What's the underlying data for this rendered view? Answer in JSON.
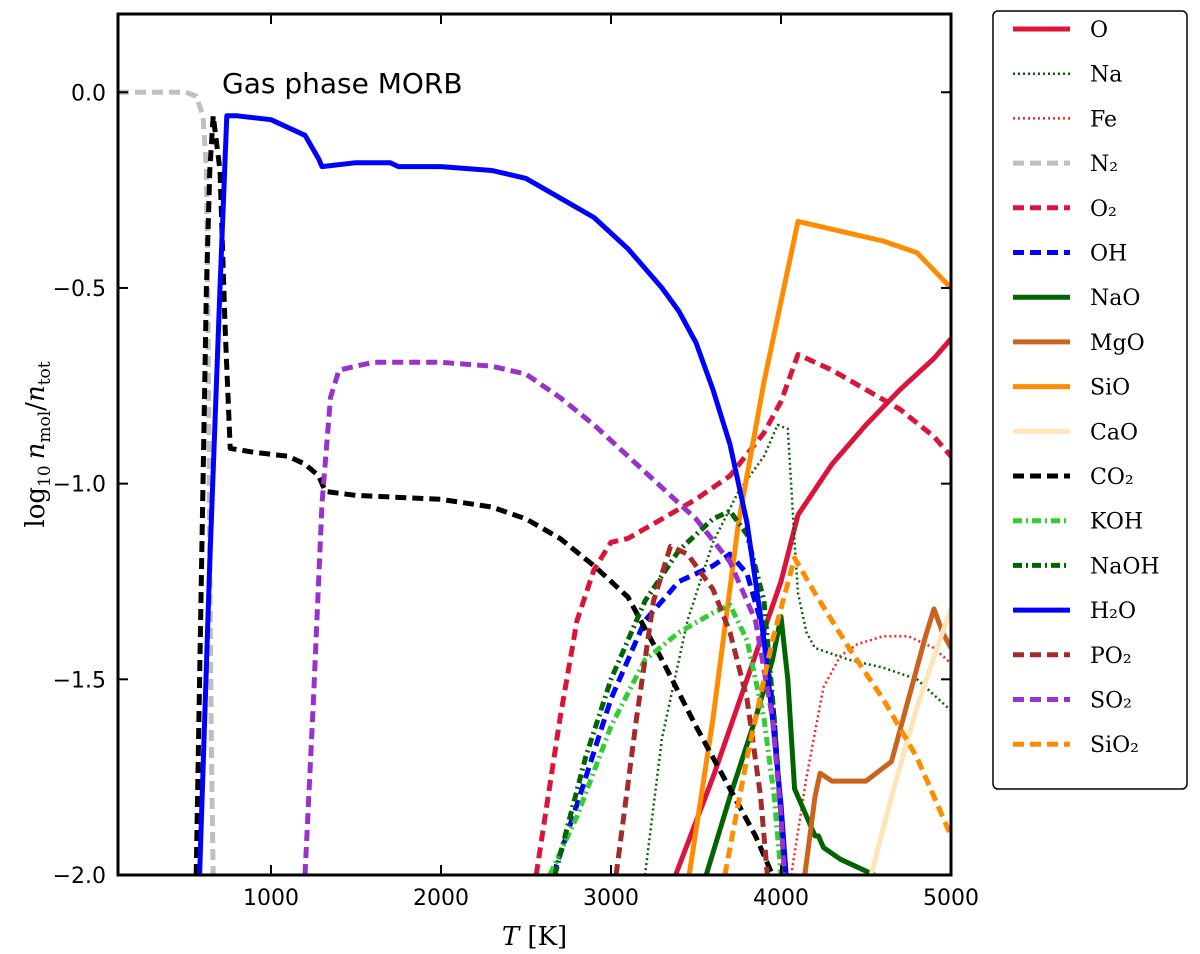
{
  "chart_data": {
    "type": "line",
    "title": "",
    "annotation": "Gas phase MORB",
    "xlabel": "T [K]",
    "ylabel": "log10 n_mol/n_tot",
    "xlim": [
      100,
      5000
    ],
    "ylim": [
      -2.0,
      0.2
    ],
    "xticks": [
      1000,
      2000,
      3000,
      4000,
      5000
    ],
    "xtick_labels": [
      "1000",
      "2000",
      "3000",
      "4000",
      "5000"
    ],
    "yticks": [
      0.0,
      -0.5,
      -1.0,
      -1.5,
      -2.0
    ],
    "ytick_labels": [
      "0.0",
      "−0.5",
      "−1.0",
      "−1.5",
      "−2.0"
    ],
    "grid": false,
    "legend_position": "outside-right",
    "series": [
      {
        "name": "O",
        "color": "#dc143c",
        "style": "solid",
        "points": [
          [
            3380,
            -2.0
          ],
          [
            3600,
            -1.75
          ],
          [
            3800,
            -1.5
          ],
          [
            4000,
            -1.25
          ],
          [
            4100,
            -1.08
          ],
          [
            4300,
            -0.95
          ],
          [
            4500,
            -0.85
          ],
          [
            4700,
            -0.76
          ],
          [
            4900,
            -0.68
          ],
          [
            5000,
            -0.63
          ]
        ]
      },
      {
        "name": "Na",
        "color": "#006400",
        "style": "dotted",
        "points": [
          [
            3200,
            -2.0
          ],
          [
            3300,
            -1.65
          ],
          [
            3450,
            -1.35
          ],
          [
            3600,
            -1.15
          ],
          [
            3750,
            -1.02
          ],
          [
            3900,
            -0.93
          ],
          [
            3980,
            -0.85
          ],
          [
            4040,
            -0.86
          ],
          [
            4080,
            -1.15
          ],
          [
            4100,
            -1.28
          ],
          [
            4150,
            -1.38
          ],
          [
            4200,
            -1.42
          ],
          [
            4400,
            -1.45
          ],
          [
            4600,
            -1.47
          ],
          [
            4800,
            -1.5
          ],
          [
            5000,
            -1.58
          ]
        ]
      },
      {
        "name": "Fe",
        "color": "#ff2020",
        "style": "dotted",
        "points": [
          [
            4060,
            -2.0
          ],
          [
            4150,
            -1.75
          ],
          [
            4250,
            -1.52
          ],
          [
            4350,
            -1.44
          ],
          [
            4450,
            -1.41
          ],
          [
            4600,
            -1.39
          ],
          [
            4750,
            -1.39
          ],
          [
            4900,
            -1.42
          ],
          [
            5000,
            -1.46
          ]
        ]
      },
      {
        "name": "N₂",
        "color": "#bfbfbf",
        "style": "dashed",
        "points": [
          [
            100,
            0.0
          ],
          [
            500,
            0.0
          ],
          [
            560,
            -0.01
          ],
          [
            600,
            -0.06
          ],
          [
            620,
            -0.2
          ],
          [
            630,
            -0.6
          ],
          [
            640,
            -1.2
          ],
          [
            650,
            -1.7
          ],
          [
            660,
            -2.0
          ]
        ]
      },
      {
        "name": "O₂",
        "color": "#dc143c",
        "style": "dashed",
        "points": [
          [
            2560,
            -2.0
          ],
          [
            2700,
            -1.6
          ],
          [
            2800,
            -1.35
          ],
          [
            2900,
            -1.22
          ],
          [
            3000,
            -1.15
          ],
          [
            3100,
            -1.14
          ],
          [
            3300,
            -1.09
          ],
          [
            3500,
            -1.04
          ],
          [
            3700,
            -0.98
          ],
          [
            3900,
            -0.87
          ],
          [
            4000,
            -0.79
          ],
          [
            4100,
            -0.67
          ],
          [
            4300,
            -0.71
          ],
          [
            4500,
            -0.76
          ],
          [
            4700,
            -0.81
          ],
          [
            4900,
            -0.88
          ],
          [
            5000,
            -0.93
          ]
        ]
      },
      {
        "name": "OH",
        "color": "#0000ff",
        "style": "dashed",
        "points": [
          [
            2660,
            -2.0
          ],
          [
            2800,
            -1.82
          ],
          [
            3000,
            -1.55
          ],
          [
            3200,
            -1.35
          ],
          [
            3400,
            -1.25
          ],
          [
            3600,
            -1.21
          ],
          [
            3700,
            -1.18
          ],
          [
            3800,
            -1.23
          ],
          [
            3900,
            -1.38
          ],
          [
            3960,
            -1.6
          ],
          [
            4000,
            -1.85
          ],
          [
            4030,
            -2.0
          ]
        ]
      },
      {
        "name": "NaO",
        "color": "#006400",
        "style": "solid",
        "points": [
          [
            3560,
            -2.0
          ],
          [
            3700,
            -1.8
          ],
          [
            3850,
            -1.6
          ],
          [
            3950,
            -1.45
          ],
          [
            4000,
            -1.34
          ],
          [
            4040,
            -1.5
          ],
          [
            4080,
            -1.78
          ],
          [
            4150,
            -1.85
          ],
          [
            4200,
            -1.9
          ],
          [
            4220,
            -1.9
          ],
          [
            4250,
            -1.93
          ],
          [
            4350,
            -1.96
          ],
          [
            4450,
            -1.98
          ],
          [
            4550,
            -2.0
          ]
        ]
      },
      {
        "name": "MgO",
        "color": "#c8641e",
        "style": "solid",
        "points": [
          [
            4140,
            -2.0
          ],
          [
            4170,
            -1.9
          ],
          [
            4200,
            -1.8
          ],
          [
            4230,
            -1.74
          ],
          [
            4300,
            -1.76
          ],
          [
            4500,
            -1.76
          ],
          [
            4650,
            -1.71
          ],
          [
            4750,
            -1.55
          ],
          [
            4850,
            -1.39
          ],
          [
            4900,
            -1.32
          ],
          [
            4950,
            -1.38
          ],
          [
            5000,
            -1.42
          ]
        ]
      },
      {
        "name": "SiO",
        "color": "#ff8c00",
        "style": "solid",
        "points": [
          [
            3460,
            -2.0
          ],
          [
            3600,
            -1.6
          ],
          [
            3750,
            -1.1
          ],
          [
            3900,
            -0.74
          ],
          [
            4100,
            -0.33
          ],
          [
            4200,
            -0.34
          ],
          [
            4400,
            -0.36
          ],
          [
            4600,
            -0.38
          ],
          [
            4800,
            -0.41
          ],
          [
            5000,
            -0.5
          ]
        ]
      },
      {
        "name": "CaO",
        "color": "#fde5b8",
        "style": "solid",
        "points": [
          [
            4530,
            -2.0
          ],
          [
            4650,
            -1.8
          ],
          [
            4800,
            -1.57
          ],
          [
            4950,
            -1.38
          ],
          [
            5000,
            -1.32
          ]
        ]
      },
      {
        "name": "CO₂",
        "color": "#000000",
        "style": "dashed",
        "points": [
          [
            560,
            -2.0
          ],
          [
            580,
            -1.5
          ],
          [
            600,
            -1.0
          ],
          [
            620,
            -0.5
          ],
          [
            640,
            -0.2
          ],
          [
            660,
            -0.06
          ],
          [
            700,
            -0.2
          ],
          [
            730,
            -0.6
          ],
          [
            760,
            -0.91
          ],
          [
            900,
            -0.92
          ],
          [
            1100,
            -0.93
          ],
          [
            1200,
            -0.95
          ],
          [
            1280,
            -0.98
          ],
          [
            1320,
            -1.02
          ],
          [
            1500,
            -1.03
          ],
          [
            2000,
            -1.04
          ],
          [
            2300,
            -1.06
          ],
          [
            2500,
            -1.09
          ],
          [
            2700,
            -1.14
          ],
          [
            2900,
            -1.21
          ],
          [
            3100,
            -1.29
          ],
          [
            3300,
            -1.45
          ],
          [
            3500,
            -1.62
          ],
          [
            3700,
            -1.78
          ],
          [
            3850,
            -1.9
          ],
          [
            3950,
            -2.0
          ]
        ]
      },
      {
        "name": "KOH",
        "color": "#32cd32",
        "style": "dashdot",
        "points": [
          [
            2640,
            -2.0
          ],
          [
            2800,
            -1.85
          ],
          [
            3000,
            -1.62
          ],
          [
            3200,
            -1.45
          ],
          [
            3400,
            -1.38
          ],
          [
            3600,
            -1.33
          ],
          [
            3700,
            -1.31
          ],
          [
            3800,
            -1.4
          ],
          [
            3900,
            -1.6
          ],
          [
            3960,
            -1.8
          ],
          [
            4000,
            -2.0
          ]
        ]
      },
      {
        "name": "NaOH",
        "color": "#006400",
        "style": "dashdot",
        "points": [
          [
            2670,
            -2.0
          ],
          [
            2850,
            -1.7
          ],
          [
            3000,
            -1.5
          ],
          [
            3200,
            -1.3
          ],
          [
            3400,
            -1.17
          ],
          [
            3600,
            -1.09
          ],
          [
            3700,
            -1.07
          ],
          [
            3800,
            -1.13
          ],
          [
            3900,
            -1.3
          ],
          [
            3960,
            -1.6
          ],
          [
            4000,
            -1.85
          ],
          [
            4020,
            -2.0
          ]
        ]
      },
      {
        "name": "H₂O",
        "color": "#0000ff",
        "style": "solid",
        "points": [
          [
            580,
            -2.0
          ],
          [
            640,
            -1.2
          ],
          [
            700,
            -0.5
          ],
          [
            740,
            -0.06
          ],
          [
            800,
            -0.06
          ],
          [
            1000,
            -0.07
          ],
          [
            1200,
            -0.11
          ],
          [
            1280,
            -0.17
          ],
          [
            1300,
            -0.19
          ],
          [
            1500,
            -0.18
          ],
          [
            1700,
            -0.18
          ],
          [
            1750,
            -0.19
          ],
          [
            2000,
            -0.19
          ],
          [
            2300,
            -0.2
          ],
          [
            2500,
            -0.22
          ],
          [
            2700,
            -0.27
          ],
          [
            2900,
            -0.32
          ],
          [
            3100,
            -0.4
          ],
          [
            3300,
            -0.5
          ],
          [
            3400,
            -0.56
          ],
          [
            3500,
            -0.64
          ],
          [
            3600,
            -0.76
          ],
          [
            3700,
            -0.9
          ],
          [
            3800,
            -1.1
          ],
          [
            3850,
            -1.25
          ],
          [
            3900,
            -1.4
          ],
          [
            3950,
            -1.6
          ],
          [
            4000,
            -1.82
          ],
          [
            4030,
            -2.0
          ]
        ]
      },
      {
        "name": "PO₂",
        "color": "#a52a2a",
        "style": "dashed",
        "points": [
          [
            3030,
            -2.0
          ],
          [
            3150,
            -1.6
          ],
          [
            3250,
            -1.3
          ],
          [
            3350,
            -1.16
          ],
          [
            3450,
            -1.18
          ],
          [
            3600,
            -1.27
          ],
          [
            3700,
            -1.38
          ],
          [
            3800,
            -1.55
          ],
          [
            3880,
            -1.8
          ],
          [
            3920,
            -2.0
          ]
        ]
      },
      {
        "name": "SO₂",
        "color": "#9932cc",
        "style": "dashed",
        "points": [
          [
            1200,
            -2.0
          ],
          [
            1250,
            -1.55
          ],
          [
            1300,
            -1.05
          ],
          [
            1350,
            -0.78
          ],
          [
            1400,
            -0.71
          ],
          [
            1600,
            -0.69
          ],
          [
            2000,
            -0.69
          ],
          [
            2300,
            -0.7
          ],
          [
            2500,
            -0.72
          ],
          [
            2700,
            -0.78
          ],
          [
            2900,
            -0.85
          ],
          [
            3100,
            -0.93
          ],
          [
            3300,
            -1.01
          ],
          [
            3500,
            -1.09
          ],
          [
            3700,
            -1.2
          ],
          [
            3850,
            -1.35
          ],
          [
            3950,
            -1.6
          ],
          [
            4000,
            -1.85
          ],
          [
            4020,
            -2.0
          ]
        ]
      },
      {
        "name": "SiO₂",
        "color": "#ff8c00",
        "style": "dashed",
        "points": [
          [
            3670,
            -2.0
          ],
          [
            3800,
            -1.7
          ],
          [
            3950,
            -1.4
          ],
          [
            4080,
            -1.19
          ],
          [
            4200,
            -1.28
          ],
          [
            4400,
            -1.42
          ],
          [
            4600,
            -1.55
          ],
          [
            4800,
            -1.7
          ],
          [
            5000,
            -1.9
          ]
        ]
      }
    ]
  }
}
